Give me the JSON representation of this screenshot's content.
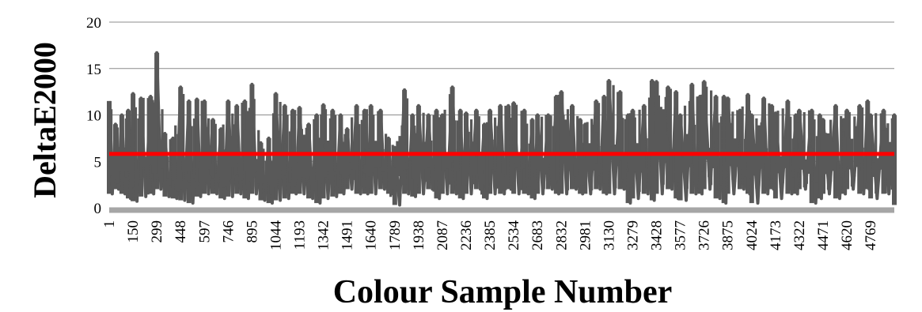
{
  "chart_data": {
    "type": "line",
    "title": "",
    "xlabel": "Colour Sample Number",
    "ylabel": "DeltaE2000",
    "ylim": [
      0,
      20
    ],
    "yticks": [
      0,
      5,
      10,
      15,
      20
    ],
    "xlim": [
      1,
      4917
    ],
    "xticks": [
      1,
      150,
      299,
      448,
      597,
      746,
      895,
      1044,
      1193,
      1342,
      1491,
      1640,
      1789,
      1938,
      2087,
      2236,
      2385,
      2534,
      2683,
      2832,
      2981,
      3130,
      3279,
      3428,
      3577,
      3726,
      3875,
      4024,
      4173,
      4322,
      4471,
      4620,
      4769
    ],
    "grid": true,
    "legend": "none",
    "series": [
      {
        "role": "deltaE-per-sample",
        "color": "#595959",
        "x": [
          1,
          40,
          80,
          120,
          150,
          200,
          260,
          299,
          350,
          400,
          448,
          500,
          550,
          597,
          650,
          700,
          746,
          800,
          850,
          895,
          950,
          1000,
          1044,
          1100,
          1150,
          1193,
          1250,
          1300,
          1342,
          1400,
          1450,
          1491,
          1550,
          1600,
          1640,
          1700,
          1750,
          1789,
          1850,
          1900,
          1938,
          2000,
          2050,
          2087,
          2150,
          2200,
          2236,
          2300,
          2350,
          2385,
          2450,
          2500,
          2534,
          2600,
          2650,
          2683,
          2750,
          2800,
          2832,
          2900,
          2950,
          2981,
          3050,
          3100,
          3130,
          3200,
          3250,
          3279,
          3350,
          3400,
          3428,
          3500,
          3550,
          3577,
          3650,
          3700,
          3726,
          3800,
          3850,
          3875,
          3950,
          4000,
          4024,
          4100,
          4150,
          4173,
          4250,
          4300,
          4322,
          4400,
          4450,
          4471,
          4550,
          4600,
          4620,
          4700,
          4750,
          4769,
          4850,
          4917
        ],
        "high": [
          11.5,
          9,
          10,
          10.5,
          12.3,
          11.8,
          12,
          16.7,
          8,
          7.5,
          13,
          11.5,
          11.7,
          11.5,
          9.5,
          8.5,
          11.5,
          11,
          11.5,
          13.3,
          7,
          7.5,
          12.3,
          11,
          10.5,
          10.8,
          9,
          10,
          11.1,
          10.5,
          10,
          8.5,
          11,
          10.5,
          11,
          10.5,
          7.5,
          6.5,
          12.7,
          10,
          11,
          10,
          10.5,
          10,
          13,
          10.5,
          10.2,
          10.5,
          9,
          10.5,
          11,
          11,
          11.3,
          10.5,
          9.5,
          10,
          10,
          12,
          12.5,
          11,
          9.5,
          9,
          11.5,
          12,
          13.7,
          12.5,
          10,
          10.5,
          11,
          13.7,
          13.6,
          13,
          12.5,
          10,
          13.3,
          12,
          13.6,
          12,
          12,
          11.8,
          10.5,
          12.2,
          10,
          11.8,
          11,
          10.2,
          11.5,
          10,
          10.5,
          10.5,
          10,
          9.5,
          11,
          9.5,
          10.5,
          11,
          11.5,
          10,
          10.5,
          10
        ],
        "low": [
          1.5,
          2,
          1.5,
          1,
          0.7,
          1.2,
          1.5,
          2,
          1.2,
          1,
          0.8,
          0.5,
          1.2,
          1.5,
          1.5,
          1,
          1.2,
          1.5,
          1,
          1.5,
          0.8,
          0.5,
          0.8,
          1,
          1.5,
          1.5,
          1,
          0.5,
          1,
          1.2,
          1.5,
          2,
          1.5,
          1.5,
          1.5,
          2,
          1.5,
          0.3,
          1.5,
          1.2,
          1.5,
          2,
          1,
          1.5,
          1.5,
          1,
          1.5,
          2,
          1,
          1.5,
          1.5,
          2,
          1.5,
          1.5,
          1,
          1.5,
          2,
          1.5,
          1.5,
          2,
          1.5,
          1.5,
          2,
          1.5,
          1.5,
          2,
          0.5,
          1,
          1.5,
          0.8,
          1.5,
          2,
          1,
          0.8,
          1.5,
          1.5,
          2,
          1,
          0.5,
          1.5,
          2,
          1.5,
          0.5,
          1.5,
          2,
          1,
          1.5,
          1.5,
          2,
          0.5,
          1,
          1.5,
          1,
          1.5,
          2,
          1.5,
          2,
          1,
          1.5,
          0.3
        ]
      },
      {
        "role": "mean",
        "color": "#ff0000",
        "x": [
          1,
          4917
        ],
        "values": [
          5.8,
          5.8
        ]
      }
    ]
  }
}
